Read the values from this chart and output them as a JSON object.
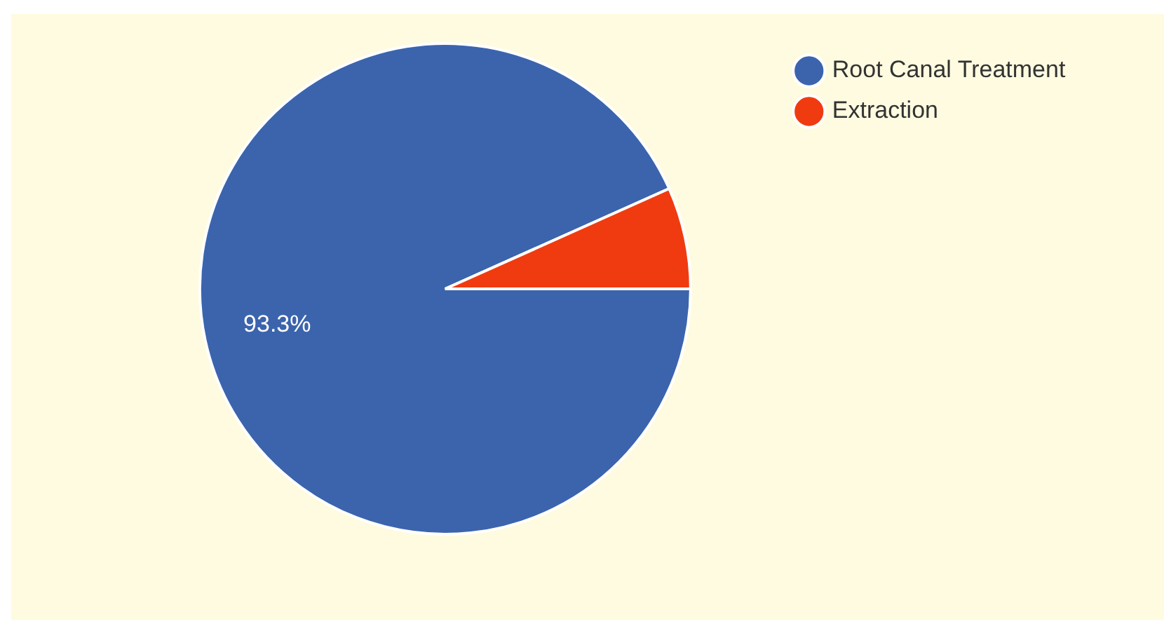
{
  "chart_data": {
    "type": "pie",
    "categories": [
      "Root Canal Treatment",
      "Extraction"
    ],
    "values": [
      93.3,
      6.7
    ],
    "colors": [
      "#3b64ad",
      "#f03b10"
    ],
    "value_labels": [
      "93.3%",
      null
    ],
    "legend": "top right"
  }
}
